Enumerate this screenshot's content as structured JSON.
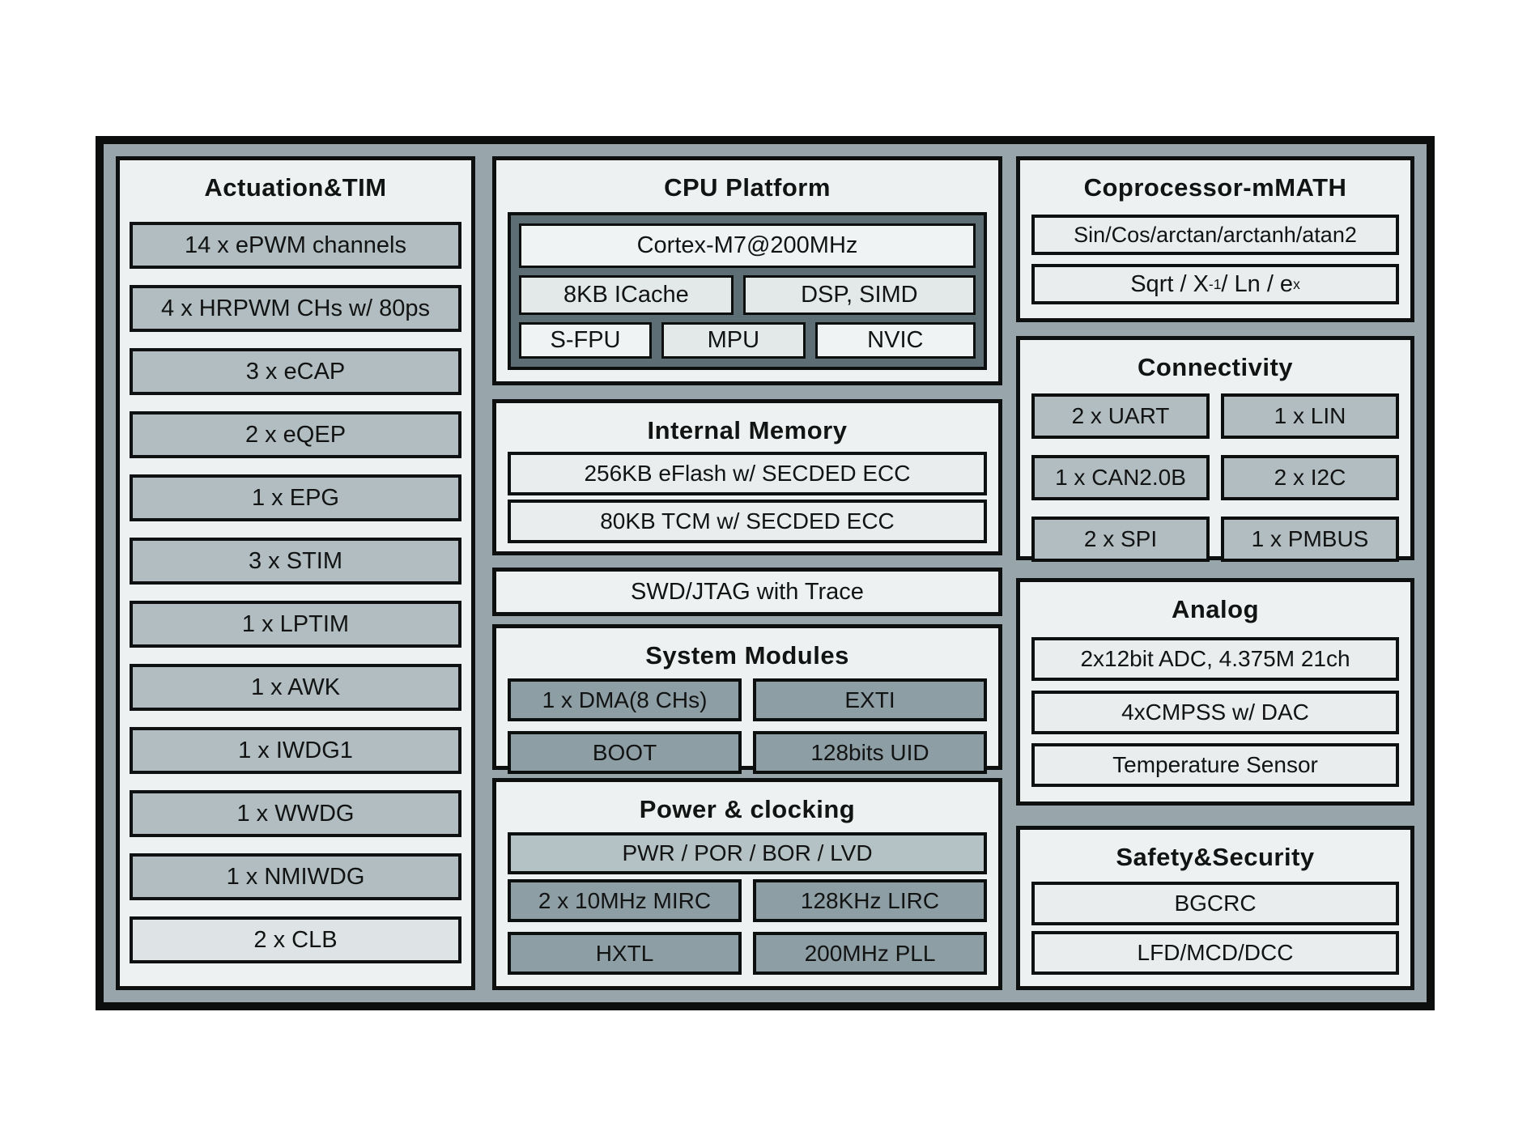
{
  "diagram": {
    "left": {
      "title": "Actuation&TIM",
      "items": [
        {
          "label": "14 x ePWM channels"
        },
        {
          "label": "4 x HRPWM CHs w/ 80ps"
        },
        {
          "label": "3 x eCAP"
        },
        {
          "label": "2 x eQEP"
        },
        {
          "label": "1 x EPG"
        },
        {
          "label": "3 x STIM"
        },
        {
          "label": "1 x LPTIM"
        },
        {
          "label": "1 x AWK"
        },
        {
          "label": "1 x IWDG1"
        },
        {
          "label": "1 x WWDG"
        },
        {
          "label": "1 x NMIWDG"
        },
        {
          "label": "2 x CLB"
        }
      ]
    },
    "middle": {
      "cpu": {
        "title": "CPU Platform",
        "core": "Cortex-M7@200MHz",
        "cache": "8KB ICache",
        "dsp_simd": "DSP、SIMD",
        "sfpu": "S-FPU",
        "mpu": "MPU",
        "nvic": "NVIC"
      },
      "memory": {
        "title": "Internal Memory",
        "rows": [
          "256KB eFlash w/ SECDED ECC",
          "80KB TCM w/ SECDED ECC"
        ]
      },
      "debug": {
        "label": "SWD/JTAG with Trace"
      },
      "system": {
        "title": "System Modules",
        "cells": [
          "1 x DMA(8 CHs)",
          "EXTI",
          "BOOT",
          "128bits UID"
        ]
      },
      "power": {
        "title": "Power & clocking",
        "wide": "PWR / POR / BOR / LVD",
        "cells": [
          "2 x 10MHz MIRC",
          "128KHz LIRC",
          "HXTL",
          "200MHz PLL"
        ]
      }
    },
    "right": {
      "math": {
        "title": "Coprocessor-mMATH",
        "row1": "Sin/Cos/arctan/arctanh/atan2",
        "row2": {
          "a": "Sqrt / X",
          "sup_a": "-1",
          "b": " / Ln / e",
          "sup_b": "x"
        }
      },
      "connectivity": {
        "title": "Connectivity",
        "cells": [
          "2 x UART",
          "1 x LIN",
          "1 x CAN2.0B",
          "2 x I2C",
          "2 x SPI",
          "1 x PMBUS"
        ]
      },
      "analog": {
        "title": "Analog",
        "rows": [
          "2x12bit ADC, 4.375M 21ch",
          "4xCMPSS w/ DAC",
          "Temperature Sensor"
        ]
      },
      "safety": {
        "title": "Safety&Security",
        "rows": [
          "BGCRC",
          "LFD/MCD/DCC"
        ]
      }
    },
    "colors": {
      "outer_border": "#0c0d0d",
      "frame_gray": "#98a6ab",
      "panel_bg": "#eef1f1",
      "item_gray": "#b1bdc1",
      "cell_dark": "#8e9ea5",
      "box_light": "#e9edee",
      "box_white": "#f0f3f3",
      "box_mid": "#e3e8e9",
      "pwr_bar": "#b5c2c5",
      "clb_light": "#dee4e5",
      "cpu_frame": "#5d6e74"
    }
  }
}
